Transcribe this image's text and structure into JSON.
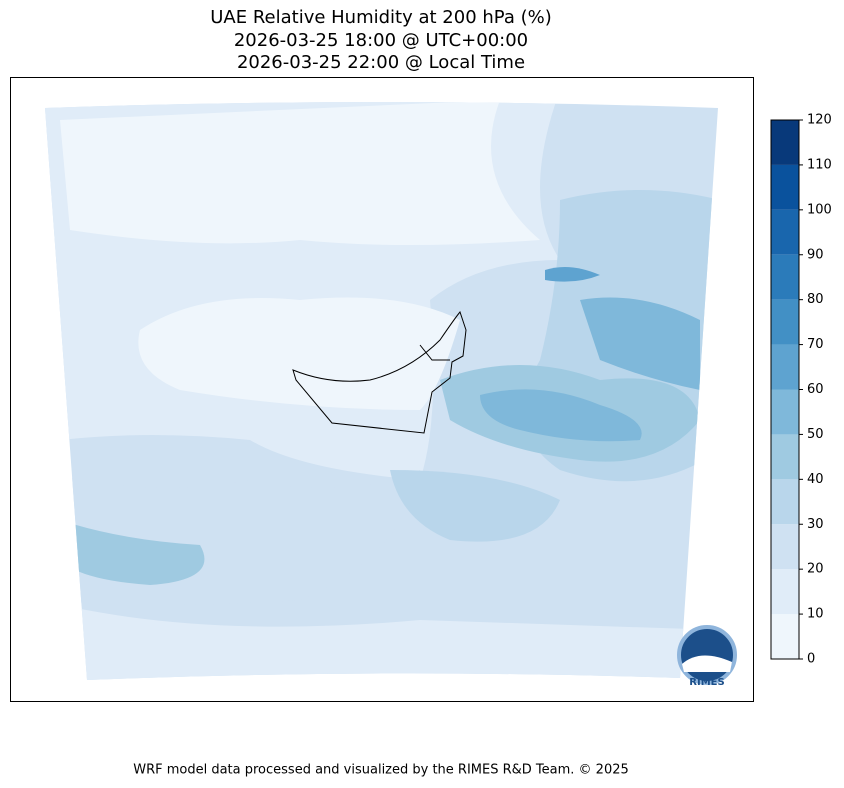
{
  "header": {
    "title_lines": [
      "UAE Relative Humidity at 200 hPa (%)",
      "2026-03-25 18:00 @ UTC+00:00",
      "2026-03-25 22:00 @ Local Time"
    ]
  },
  "colorbar": {
    "ticks": [
      0,
      10,
      20,
      30,
      40,
      50,
      60,
      70,
      80,
      90,
      100,
      110,
      120
    ],
    "colors": [
      "#eff6fc",
      "#e0ecf8",
      "#cfe1f2",
      "#b9d6eb",
      "#9fcae1",
      "#7fb8da",
      "#5ea3d0",
      "#4290c5",
      "#2b7bba",
      "#1966ad",
      "#0a529d",
      "#08397a"
    ]
  },
  "logo": {
    "text": "RIMES"
  },
  "footer": {
    "text": "WRF model data processed and visualized by the RIMES R&D Team. © 2025"
  }
}
